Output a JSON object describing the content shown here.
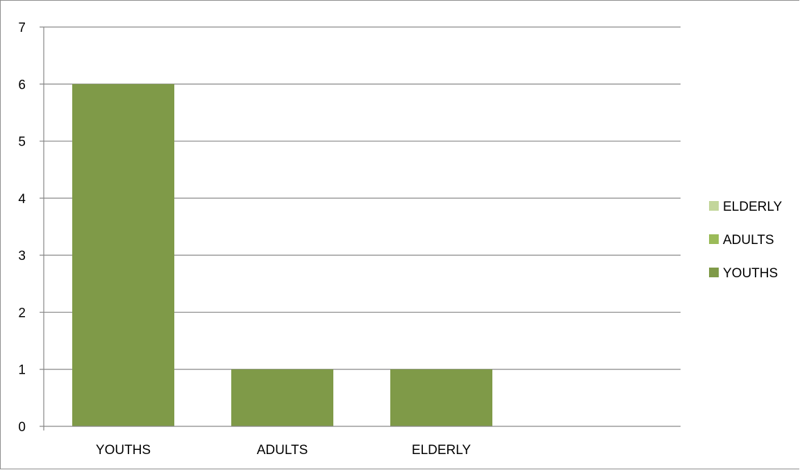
{
  "chart_data": {
    "type": "bar",
    "categories": [
      "YOUTHS",
      "ADULTS",
      "ELDERLY"
    ],
    "values": [
      6,
      1,
      1
    ],
    "ylim": [
      0,
      7
    ],
    "yticks": [
      0,
      1,
      2,
      3,
      4,
      5,
      6,
      7
    ],
    "grid": true,
    "legend": {
      "placement": "right",
      "entries": [
        {
          "label": "ELDERLY",
          "color": "#c3d69b"
        },
        {
          "label": "ADULTS",
          "color": "#9bbb59"
        },
        {
          "label": "YOUTHS",
          "color": "#7f9a48"
        }
      ]
    },
    "bar_color": "#7f9a48",
    "grid_color": "#868686"
  }
}
